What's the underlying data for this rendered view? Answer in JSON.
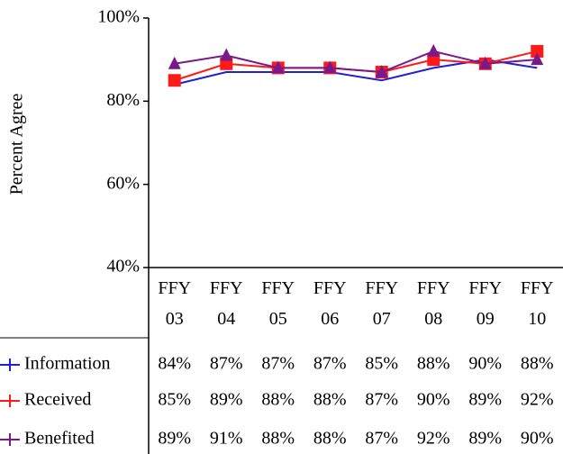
{
  "chart_data": {
    "type": "line",
    "y_label": "Percent Agree",
    "categories": [
      "FFY 03",
      "FFY 04",
      "FFY 05",
      "FFY 06",
      "FFY 07",
      "FFY 08",
      "FFY 09",
      "FFY 10"
    ],
    "ylim": [
      40,
      100
    ],
    "yticks": [
      {
        "value": 40,
        "label": "40%"
      },
      {
        "value": 60,
        "label": "60%"
      },
      {
        "value": 80,
        "label": "80%"
      },
      {
        "value": 100,
        "label": "100%"
      }
    ],
    "series": [
      {
        "name": "Information",
        "color": "#1f1fd6",
        "marker": "none",
        "values": [
          84,
          87,
          87,
          87,
          85,
          88,
          90,
          88
        ],
        "value_labels": [
          "84%",
          "87%",
          "87%",
          "87%",
          "85%",
          "88%",
          "90%",
          "88%"
        ]
      },
      {
        "name": "Received",
        "color": "#ff1a1a",
        "marker": "square",
        "values": [
          85,
          89,
          88,
          88,
          87,
          90,
          89,
          92
        ],
        "value_labels": [
          "85%",
          "89%",
          "88%",
          "88%",
          "87%",
          "90%",
          "89%",
          "92%"
        ]
      },
      {
        "name": "Benefited",
        "color": "#7a1a8a",
        "marker": "triangle",
        "values": [
          89,
          91,
          88,
          88,
          87,
          92,
          89,
          90
        ],
        "value_labels": [
          "89%",
          "91%",
          "88%",
          "88%",
          "87%",
          "92%",
          "89%",
          "90%"
        ]
      }
    ]
  }
}
